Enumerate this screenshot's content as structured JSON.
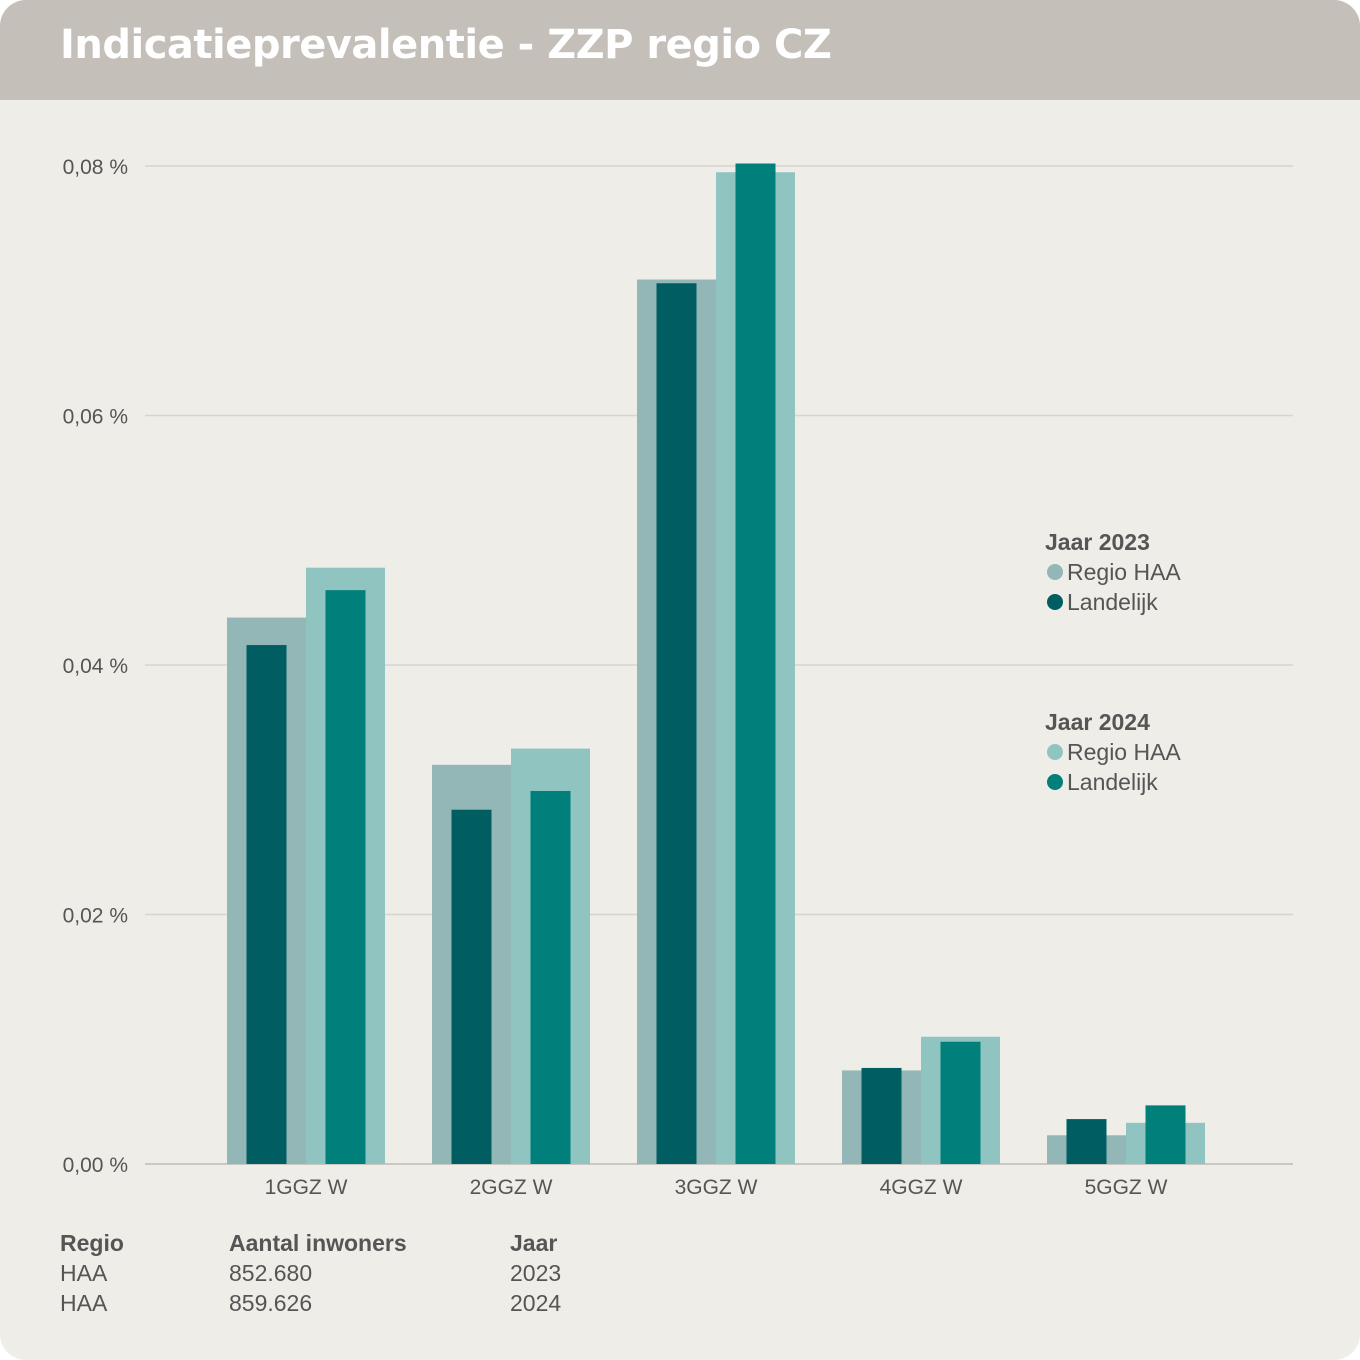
{
  "header": {
    "title": "Indicatieprevalentie - ZZP regio CZ"
  },
  "chart_data": {
    "type": "bar",
    "categories": [
      "1GGZ W",
      "2GGZ W",
      "3GGZ W",
      "4GGZ W",
      "5GGZ W"
    ],
    "ylim": [
      0,
      0.08
    ],
    "yticks": [
      0,
      0.02,
      0.04,
      0.06,
      0.08
    ],
    "ytick_labels": [
      "0,00 %",
      "0,02 %",
      "0,04 %",
      "0,06 %",
      "0,08 %"
    ],
    "grid": true,
    "legend_position": "right",
    "legend_groups": [
      {
        "title": "Jaar 2023",
        "entries": [
          "Regio HAA",
          "Landelijk"
        ]
      },
      {
        "title": "Jaar 2024",
        "entries": [
          "Regio HAA",
          "Landelijk"
        ]
      }
    ],
    "series": [
      {
        "name": "Regio HAA",
        "year": "2023",
        "color": "#93b6b6",
        "values": [
          0.0438,
          0.032,
          0.0709,
          0.0075,
          0.0023
        ]
      },
      {
        "name": "Landelijk",
        "year": "2023",
        "color": "#005e63",
        "values": [
          0.0416,
          0.0284,
          0.0706,
          0.0077,
          0.0036
        ]
      },
      {
        "name": "Regio HAA",
        "year": "2024",
        "color": "#8fc4c0",
        "values": [
          0.0478,
          0.0333,
          0.0795,
          0.0102,
          0.0033
        ]
      },
      {
        "name": "Landelijk",
        "year": "2024",
        "color": "#007f7b",
        "values": [
          0.046,
          0.0299,
          0.0802,
          0.0098,
          0.0047
        ]
      }
    ]
  },
  "info_table": {
    "headers": [
      "Regio",
      "Aantal inwoners",
      "Jaar"
    ],
    "rows": [
      [
        "HAA",
        "852.680",
        "2023"
      ],
      [
        "HAA",
        "859.626",
        "2024"
      ]
    ]
  }
}
